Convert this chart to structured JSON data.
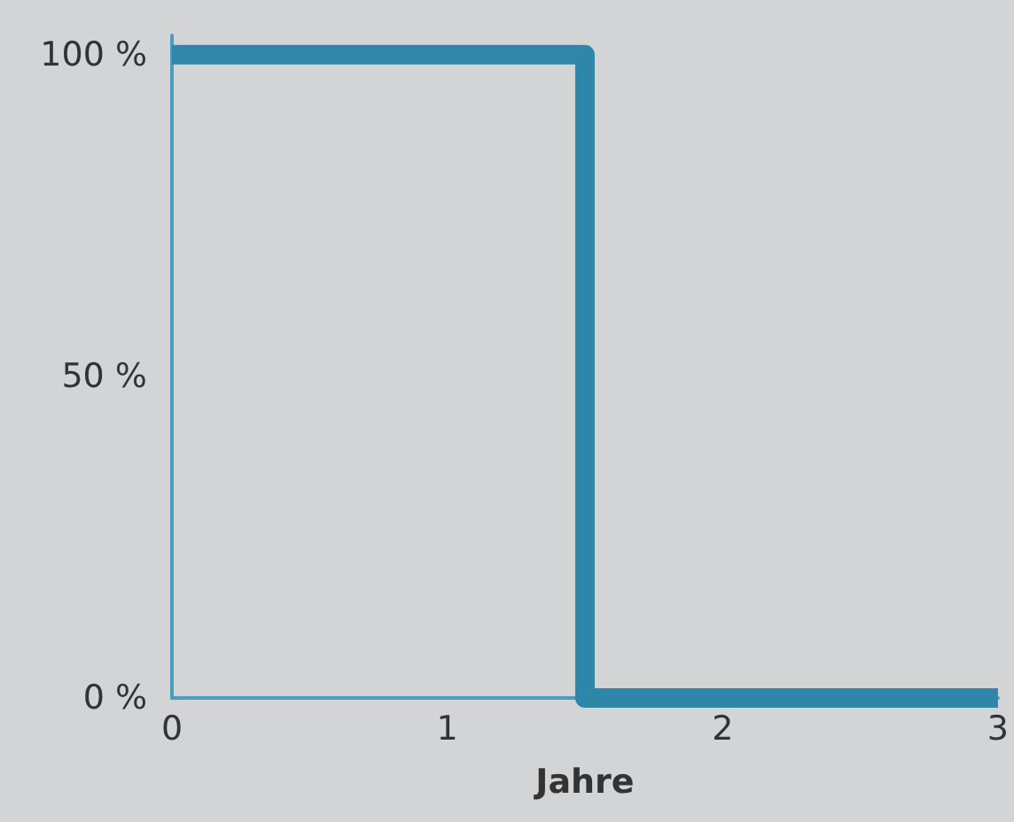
{
  "chart_data": {
    "type": "step",
    "xlabel": "Jahre",
    "x": [
      0,
      1.5,
      3
    ],
    "series": [
      {
        "color": "#2e87a8",
        "values": [
          100,
          0,
          0
        ]
      }
    ],
    "xlim": [
      0,
      3
    ],
    "xticks": [
      0,
      1,
      2,
      3
    ],
    "ylim": [
      0,
      103
    ],
    "yticks": [
      {
        "value": 0,
        "label": "0 %"
      },
      {
        "value": 50,
        "label": "50 %"
      },
      {
        "value": 100,
        "label": "100 %"
      }
    ],
    "grid": false,
    "marker": "none",
    "line_style": "solid"
  }
}
